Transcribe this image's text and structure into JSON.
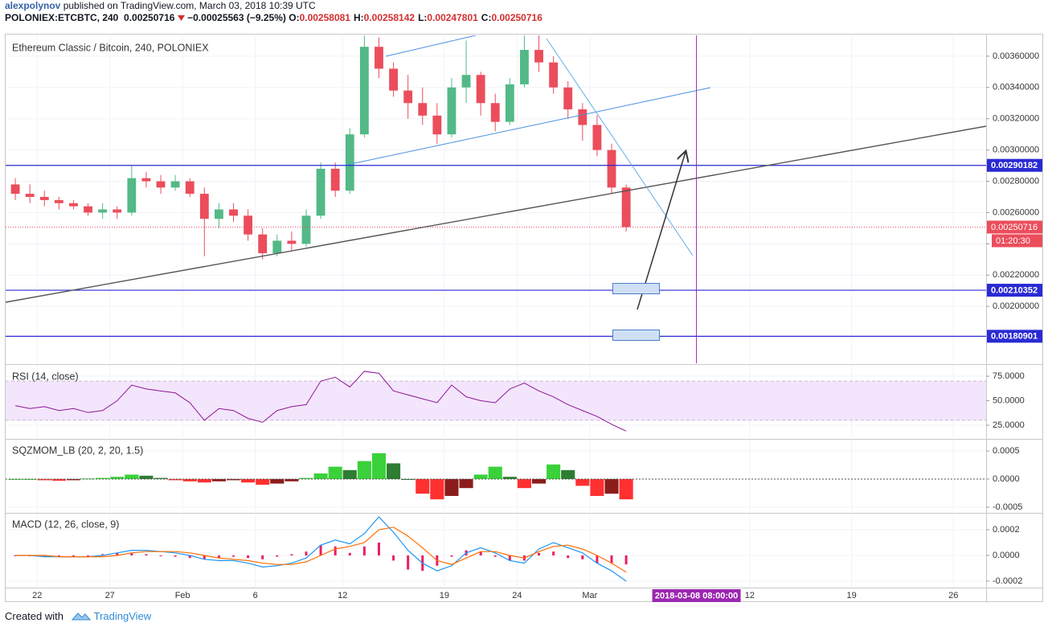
{
  "header": {
    "author": "alexpolynov",
    "published": "published on TradingView.com, March 03, 2018 10:39 UTC",
    "symbol": "POLONIEX:ETCBTC, 240",
    "last": "0.00250716",
    "change": "−0.00025563 (−9.25%)",
    "ohlc": [
      {
        "label": "O:",
        "value": "0.00258081"
      },
      {
        "label": "H:",
        "value": "0.00258142"
      },
      {
        "label": "L:",
        "value": "0.00247801"
      },
      {
        "label": "C:",
        "value": "0.00250716"
      }
    ]
  },
  "footer": {
    "text": "Created with",
    "brand": "TradingView"
  },
  "chart_data": [
    {
      "type": "candlestick",
      "title": "Ethereum Classic / Bitcoin, 240, POLONIEX",
      "x": [
        "2018-01-20",
        "2018-01-21",
        "2018-01-22",
        "2018-01-23",
        "2018-01-24",
        "2018-01-25",
        "2018-01-26",
        "2018-01-27",
        "2018-01-28",
        "2018-01-29",
        "2018-01-30",
        "2018-01-31",
        "2018-02-01",
        "2018-02-02",
        "2018-02-03",
        "2018-02-04",
        "2018-02-05",
        "2018-02-06",
        "2018-02-07",
        "2018-02-08",
        "2018-02-09",
        "2018-02-10",
        "2018-02-11",
        "2018-02-12",
        "2018-02-13",
        "2018-02-14",
        "2018-02-15",
        "2018-02-16",
        "2018-02-17",
        "2018-02-18",
        "2018-02-19",
        "2018-02-20",
        "2018-02-21",
        "2018-02-22",
        "2018-02-23",
        "2018-02-24",
        "2018-02-25",
        "2018-02-26",
        "2018-02-27",
        "2018-02-28",
        "2018-03-01",
        "2018-03-02",
        "2018-03-03"
      ],
      "open": [
        0.00278,
        0.00272,
        0.0027,
        0.00268,
        0.00266,
        0.00264,
        0.0026,
        0.00262,
        0.0026,
        0.00282,
        0.0028,
        0.00276,
        0.0028,
        0.00272,
        0.00256,
        0.00262,
        0.00258,
        0.00246,
        0.00234,
        0.00242,
        0.0024,
        0.00258,
        0.00288,
        0.00274,
        0.0031,
        0.00366,
        0.00352,
        0.00338,
        0.0033,
        0.00322,
        0.0031,
        0.0034,
        0.00348,
        0.0033,
        0.00318,
        0.00342,
        0.00364,
        0.00356,
        0.0034,
        0.00326,
        0.00316,
        0.003,
        0.00276
      ],
      "high": [
        0.00282,
        0.00278,
        0.00274,
        0.0027,
        0.00268,
        0.00266,
        0.00266,
        0.00264,
        0.0029,
        0.00286,
        0.00284,
        0.00284,
        0.00282,
        0.00276,
        0.00266,
        0.00266,
        0.00262,
        0.0025,
        0.00246,
        0.00248,
        0.00262,
        0.00292,
        0.00292,
        0.00314,
        0.00376,
        0.00372,
        0.00356,
        0.00348,
        0.0034,
        0.0033,
        0.00346,
        0.0037,
        0.0035,
        0.00336,
        0.00346,
        0.00374,
        0.00374,
        0.0036,
        0.00344,
        0.0033,
        0.00322,
        0.00304,
        0.00278
      ],
      "low": [
        0.00268,
        0.00266,
        0.00264,
        0.00262,
        0.00262,
        0.00258,
        0.00256,
        0.00256,
        0.00258,
        0.00276,
        0.00272,
        0.00274,
        0.0027,
        0.00232,
        0.0025,
        0.00254,
        0.00242,
        0.0023,
        0.00232,
        0.00236,
        0.00238,
        0.00256,
        0.0027,
        0.00272,
        0.00308,
        0.00346,
        0.00334,
        0.0032,
        0.00316,
        0.00304,
        0.00308,
        0.0033,
        0.00322,
        0.00312,
        0.00316,
        0.0034,
        0.0035,
        0.00336,
        0.0032,
        0.00306,
        0.00296,
        0.00272,
        0.00247801
      ],
      "close": [
        0.00272,
        0.0027,
        0.00268,
        0.00266,
        0.00264,
        0.0026,
        0.00262,
        0.0026,
        0.00282,
        0.0028,
        0.00276,
        0.0028,
        0.00272,
        0.00256,
        0.00262,
        0.00258,
        0.00246,
        0.00234,
        0.00242,
        0.0024,
        0.00258,
        0.00288,
        0.00274,
        0.0031,
        0.00366,
        0.00352,
        0.00338,
        0.0033,
        0.00322,
        0.0031,
        0.0034,
        0.00348,
        0.0033,
        0.00318,
        0.00342,
        0.00364,
        0.00356,
        0.0034,
        0.00326,
        0.00316,
        0.003,
        0.00276,
        0.00250716
      ],
      "up_color": "#53b987",
      "down_color": "#eb4d5c",
      "xlim": [
        "2018-01-19T20:00",
        "2018-03-28T06:00"
      ],
      "ylim": [
        0.001636,
        0.003733
      ],
      "yticks": [
        {
          "value": 0.002,
          "label": "0.00200000"
        },
        {
          "value": 0.0022,
          "label": "0.00220000"
        },
        {
          "value": 0.0024,
          "label": "0.00240000"
        },
        {
          "value": 0.0026,
          "label": "0.00260000"
        },
        {
          "value": 0.0028,
          "label": "0.00280000"
        },
        {
          "value": 0.003,
          "label": "0.00300000"
        },
        {
          "value": 0.0032,
          "label": "0.00320000"
        },
        {
          "value": 0.0034,
          "label": "0.00340000"
        },
        {
          "value": 0.0036,
          "label": "0.00360000"
        }
      ],
      "levels": [
        0.00290182,
        0.00210352,
        0.00180901
      ],
      "levels_color": "#2a2ad4",
      "last": 0.00250716,
      "countdown": "01:20:30",
      "marker": {
        "x": "2018-03-08T08:00",
        "label": "2018-03-08 08:00:00",
        "color": "#9c27b0"
      }
    },
    {
      "type": "line",
      "title": "RSI (14, close)",
      "x": [
        "2018-01-20",
        "2018-01-21",
        "2018-01-22",
        "2018-01-23",
        "2018-01-24",
        "2018-01-25",
        "2018-01-26",
        "2018-01-27",
        "2018-01-28",
        "2018-01-29",
        "2018-01-30",
        "2018-01-31",
        "2018-02-01",
        "2018-02-02",
        "2018-02-03",
        "2018-02-04",
        "2018-02-05",
        "2018-02-06",
        "2018-02-07",
        "2018-02-08",
        "2018-02-09",
        "2018-02-10",
        "2018-02-11",
        "2018-02-12",
        "2018-02-13",
        "2018-02-14",
        "2018-02-15",
        "2018-02-16",
        "2018-02-17",
        "2018-02-18",
        "2018-02-19",
        "2018-02-20",
        "2018-02-21",
        "2018-02-22",
        "2018-02-23",
        "2018-02-24",
        "2018-02-25",
        "2018-02-26",
        "2018-02-27",
        "2018-02-28",
        "2018-03-01",
        "2018-03-02",
        "2018-03-03"
      ],
      "values": [
        45,
        42,
        44,
        40,
        42,
        38,
        40,
        50,
        66,
        62,
        60,
        58,
        48,
        30,
        42,
        40,
        32,
        28,
        40,
        44,
        46,
        70,
        74,
        64,
        80,
        78,
        60,
        56,
        52,
        48,
        66,
        54,
        50,
        48,
        62,
        68,
        60,
        54,
        46,
        40,
        34,
        26,
        19
      ],
      "color": "#8e1599",
      "band": [
        30,
        70
      ],
      "xlim": [
        "2018-01-19T20:00",
        "2018-03-28T06:00"
      ],
      "ylim": [
        11.9,
        85.7
      ],
      "yticks": [
        {
          "value": 25,
          "label": "25.0000"
        },
        {
          "value": 50,
          "label": "50.0000"
        },
        {
          "value": 75,
          "label": "75.0000"
        }
      ]
    },
    {
      "type": "bar",
      "title": "SQZMOM_LB (20, 2, 20, 1.5)",
      "x": [
        "2018-01-20",
        "2018-01-21",
        "2018-01-22",
        "2018-01-23",
        "2018-01-24",
        "2018-01-25",
        "2018-01-26",
        "2018-01-27",
        "2018-01-28",
        "2018-01-29",
        "2018-01-30",
        "2018-01-31",
        "2018-02-01",
        "2018-02-02",
        "2018-02-03",
        "2018-02-04",
        "2018-02-05",
        "2018-02-06",
        "2018-02-07",
        "2018-02-08",
        "2018-02-09",
        "2018-02-10",
        "2018-02-11",
        "2018-02-12",
        "2018-02-13",
        "2018-02-14",
        "2018-02-15",
        "2018-02-16",
        "2018-02-17",
        "2018-02-18",
        "2018-02-19",
        "2018-02-20",
        "2018-02-21",
        "2018-02-22",
        "2018-02-23",
        "2018-02-24",
        "2018-02-25",
        "2018-02-26",
        "2018-02-27",
        "2018-02-28",
        "2018-03-01",
        "2018-03-02",
        "2018-03-03"
      ],
      "values": [
        0,
        0,
        -2e-05,
        -3e-05,
        -2e-05,
        1e-05,
        2e-05,
        4e-05,
        8e-05,
        6e-05,
        2e-05,
        -2e-05,
        -4e-05,
        -6e-05,
        -4e-05,
        -2e-05,
        -6e-05,
        -0.0001,
        -8e-05,
        -4e-05,
        2e-05,
        0.0001,
        0.00022,
        0.00016,
        0.00032,
        0.00046,
        0.00028,
        0,
        -0.00026,
        -0.00036,
        -0.0003,
        -0.00016,
        8e-05,
        0.00022,
        4e-05,
        -0.00016,
        -8e-05,
        0.00026,
        0.00016,
        -0.00012,
        -0.0003,
        -0.00026,
        -0.00036
      ],
      "colors": [
        "#3ad13a",
        "#2e7d32",
        "#ff3030",
        "#8b1c1c"
      ],
      "xlim": [
        "2018-01-19T20:00",
        "2018-03-28T06:00"
      ],
      "ylim": [
        -0.000586,
        0.000686
      ],
      "yticks": [
        {
          "value": -0.0005,
          "label": "-0.0005"
        },
        {
          "value": 0,
          "label": "0.0000"
        },
        {
          "value": 0.0005,
          "label": "0.0005"
        }
      ]
    },
    {
      "type": "line",
      "title": "MACD (12, 26, close, 9)",
      "x": [
        "2018-01-20",
        "2018-01-21",
        "2018-01-22",
        "2018-01-23",
        "2018-01-24",
        "2018-01-25",
        "2018-01-26",
        "2018-01-27",
        "2018-01-28",
        "2018-01-29",
        "2018-01-30",
        "2018-01-31",
        "2018-02-01",
        "2018-02-02",
        "2018-02-03",
        "2018-02-04",
        "2018-02-05",
        "2018-02-06",
        "2018-02-07",
        "2018-02-08",
        "2018-02-09",
        "2018-02-10",
        "2018-02-11",
        "2018-02-12",
        "2018-02-13",
        "2018-02-14",
        "2018-02-15",
        "2018-02-16",
        "2018-02-17",
        "2018-02-18",
        "2018-02-19",
        "2018-02-20",
        "2018-02-21",
        "2018-02-22",
        "2018-02-23",
        "2018-02-24",
        "2018-02-25",
        "2018-02-26",
        "2018-02-27",
        "2018-02-28",
        "2018-03-01",
        "2018-03-02",
        "2018-03-03"
      ],
      "series": [
        {
          "color": "#e91e63",
          "style": "histogram",
          "values": [
            0,
            0,
            -1e-05,
            0,
            0,
            0,
            1e-05,
            2e-05,
            2e-05,
            1e-05,
            0,
            -1e-05,
            -2e-05,
            -3e-05,
            -2e-05,
            -1e-05,
            -2e-05,
            -3e-05,
            -1e-05,
            1e-05,
            3e-05,
            8e-05,
            7e-05,
            2e-05,
            7e-05,
            0.0001,
            -4e-05,
            -0.00011,
            -0.00012,
            -8e-05,
            -1e-05,
            4e-05,
            3e-05,
            -1e-05,
            -4e-05,
            -4e-05,
            2e-05,
            3e-05,
            -2e-05,
            -3e-05,
            -6e-05,
            -6e-05,
            -7e-05
          ]
        },
        {
          "color": "#2196f3",
          "style": "line",
          "values": [
            0,
            0,
            -1e-05,
            -1e-05,
            -1e-05,
            -1e-05,
            0,
            2e-05,
            4e-05,
            4e-05,
            3e-05,
            2e-05,
            0,
            -3e-05,
            -4e-05,
            -4e-05,
            -6e-05,
            -9e-05,
            -8e-05,
            -6e-05,
            -2e-05,
            8e-05,
            0.00012,
            9e-05,
            0.00017,
            0.0003,
            0.00018,
            4e-05,
            -6e-05,
            -0.00012,
            -8e-05,
            2e-05,
            6e-05,
            2e-05,
            -4e-05,
            -6e-05,
            5e-05,
            0.0001,
            6e-05,
            2e-05,
            -6e-05,
            -0.00012,
            -0.0002
          ]
        },
        {
          "color": "#ff6d00",
          "style": "line",
          "values": [
            0,
            0,
            0,
            -1e-05,
            -1e-05,
            -1e-05,
            -1e-05,
            0,
            2e-05,
            3e-05,
            3e-05,
            3e-05,
            2e-05,
            0,
            -2e-05,
            -3e-05,
            -4e-05,
            -6e-05,
            -7e-05,
            -7e-05,
            -5e-05,
            0,
            5e-05,
            7e-05,
            0.0001,
            0.0002,
            0.00022,
            0.00015,
            6e-05,
            -4e-05,
            -7e-05,
            -2e-05,
            3e-05,
            3e-05,
            0,
            -2e-05,
            3e-05,
            7e-05,
            8e-05,
            5e-05,
            0,
            -6e-05,
            -0.00013
          ]
        }
      ],
      "xlim": [
        "2018-01-19T20:00",
        "2018-03-28T06:00"
      ],
      "ylim": [
        -0.000244,
        0.000319
      ],
      "yticks": [
        {
          "value": -0.0002,
          "label": "-0.0002"
        },
        {
          "value": 0,
          "label": "0.0000"
        },
        {
          "value": 0.0002,
          "label": "0.0002"
        }
      ],
      "xticks": [
        {
          "value": "2018-01-22",
          "label": "22"
        },
        {
          "value": "2018-01-27",
          "label": "27"
        },
        {
          "value": "2018-02-01",
          "label": "Feb"
        },
        {
          "value": "2018-02-06",
          "label": "6"
        },
        {
          "value": "2018-02-12",
          "label": "12"
        },
        {
          "value": "2018-02-19",
          "label": "19"
        },
        {
          "value": "2018-02-24",
          "label": "24"
        },
        {
          "value": "2018-03-01",
          "label": "Mar"
        },
        {
          "value": "2018-03-12",
          "label": "12"
        },
        {
          "value": "2018-03-19",
          "label": "19"
        },
        {
          "value": "2018-03-26",
          "label": "26"
        }
      ]
    }
  ]
}
